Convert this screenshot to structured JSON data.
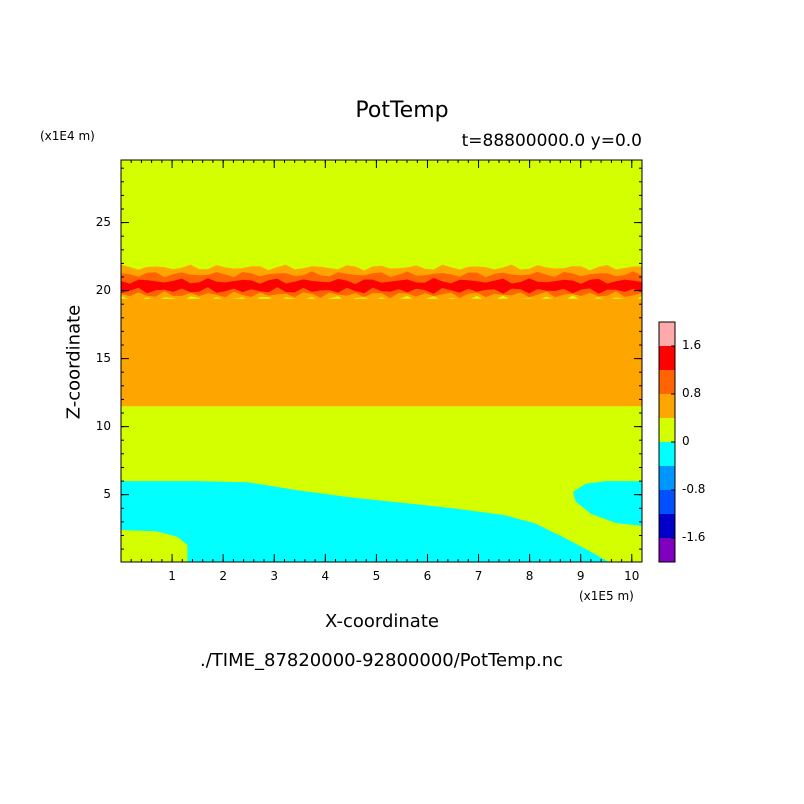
{
  "chart_data": {
    "type": "heatmap",
    "title": "PotTemp",
    "subtitle": "t=88800000.0 y=0.0",
    "xlabel": "X-coordinate",
    "ylabel": "Z-coordinate",
    "x_unit": "(x1E5 m)",
    "z_unit": "(x1E4 m)",
    "source_file": "./TIME_87820000-92800000/PotTemp.nc",
    "xlim": [
      0,
      10.2
    ],
    "ylim": [
      0.05,
      29.6
    ],
    "x_ticks": [
      "1",
      "2",
      "3",
      "4",
      "5",
      "6",
      "7",
      "8",
      "9",
      "10"
    ],
    "y_ticks": [
      "5",
      "10",
      "15",
      "20",
      "25"
    ],
    "colorbar": {
      "levels": [
        -2.0,
        -1.6,
        -1.2,
        -0.8,
        -0.4,
        0,
        0.4,
        0.8,
        1.2,
        1.6,
        2.0
      ],
      "colors": [
        "#8000c0",
        "#0000c8",
        "#0050ff",
        "#0096ff",
        "#00ffff",
        "#d4ff00",
        "#ffa500",
        "#ff6400",
        "#ff0000",
        "#ffaaaa"
      ],
      "labels": [
        "-1.6",
        "-0.8",
        "0",
        "0.8",
        "1.6"
      ]
    },
    "regions": [
      {
        "name": "background",
        "value_range": [
          0,
          0.4
        ],
        "color": "#d4ff00"
      },
      {
        "name": "mid-layer",
        "z_range": [
          11.5,
          19.4
        ],
        "value_range": [
          0.4,
          0.8
        ],
        "color": "#ffa500"
      },
      {
        "name": "upper-band-outer",
        "z_range": [
          19.4,
          21.7
        ],
        "value_range": [
          0.4,
          0.8
        ],
        "color": "#ffa500"
      },
      {
        "name": "upper-band-inner",
        "z_range": [
          19.7,
          21.2
        ],
        "value_range": [
          0.8,
          1.2
        ],
        "color": "#ff6400"
      },
      {
        "name": "upper-band-core",
        "z_range": [
          20.0,
          20.7
        ],
        "value_range": [
          1.2,
          1.6
        ],
        "color": "#ff0000"
      },
      {
        "name": "lower-cold-layer",
        "z_range": [
          0.05,
          6.0
        ],
        "value_range": [
          -0.4,
          0
        ],
        "color": "#00ffff"
      },
      {
        "name": "right-cold-lobe",
        "x_range": [
          8.8,
          10.2
        ],
        "z_range": [
          2.6,
          6.0
        ],
        "value_range": [
          -0.4,
          0
        ],
        "color": "#00ffff"
      },
      {
        "name": "lower-left-warm-patch",
        "x_range": [
          0,
          1.3
        ],
        "z_range": [
          0.05,
          2.4
        ],
        "value_range": [
          0,
          0.4
        ],
        "color": "#d4ff00"
      }
    ]
  }
}
